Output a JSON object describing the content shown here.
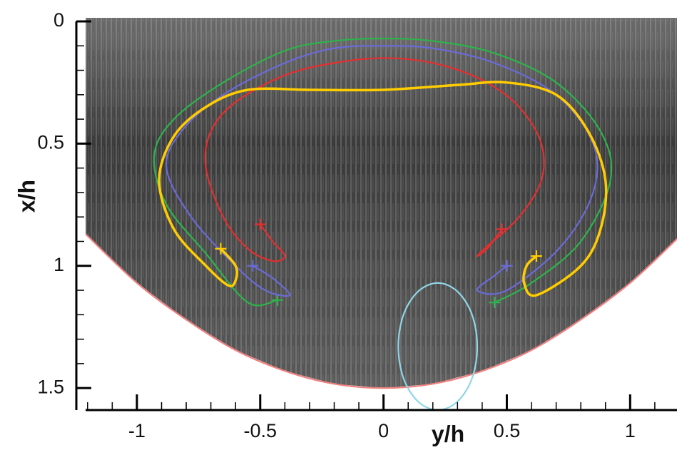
{
  "chart_data": {
    "type": "line",
    "xlabel": "y/h",
    "ylabel": "x/h",
    "xlim": [
      -1.208,
      1.19
    ],
    "ylim": [
      0,
      1.59
    ],
    "y_inverted": true,
    "xticks": [
      -1,
      -0.5,
      0,
      0.5,
      1
    ],
    "yticks": [
      0,
      0.5,
      1,
      1.5
    ],
    "xminorticks": [
      -1.2,
      -1.1,
      -0.9,
      -0.8,
      -0.7,
      -0.6,
      -0.4,
      -0.3,
      -0.2,
      -0.1,
      0.1,
      0.2,
      0.3,
      0.4,
      0.6,
      0.7,
      0.8,
      0.9,
      1.1
    ],
    "yminorticks": [
      0.1,
      0.2,
      0.3,
      0.4,
      0.6,
      0.7,
      0.8,
      0.9,
      1.1,
      1.2,
      1.3,
      1.4
    ],
    "series": [
      {
        "color": "#f08080",
        "role": "boundary",
        "x": [
          -1.208,
          -1,
          -0.8,
          -0.6,
          -0.4,
          -0.2,
          0,
          0.2,
          0.4,
          0.6,
          0.8,
          1,
          1.19
        ],
        "values": [
          0.87,
          1.07,
          1.22,
          1.345,
          1.43,
          1.483,
          1.5,
          1.483,
          1.43,
          1.345,
          1.22,
          1.07,
          0.89
        ]
      },
      {
        "color": "#2db34a",
        "marker": "+",
        "x": [
          -0.43,
          -0.55,
          -0.72,
          -0.88,
          -0.93,
          -0.85,
          -0.65,
          -0.4,
          -0.2,
          0,
          0.2,
          0.45,
          0.7,
          0.88,
          0.92,
          0.8,
          0.6,
          0.45
        ],
        "values": [
          1.14,
          1.15,
          0.95,
          0.75,
          0.55,
          0.4,
          0.25,
          0.12,
          0.08,
          0.07,
          0.08,
          0.13,
          0.25,
          0.45,
          0.65,
          0.9,
          1.07,
          1.15
        ]
      },
      {
        "color": "#6a6ad8",
        "marker": "+",
        "x": [
          -0.53,
          -0.45,
          -0.38,
          -0.48,
          -0.6,
          -0.78,
          -0.88,
          -0.82,
          -0.65,
          -0.4,
          -0.2,
          0,
          0.2,
          0.45,
          0.7,
          0.85,
          0.85,
          0.72,
          0.5,
          0.38,
          0.45,
          0.5
        ],
        "values": [
          1.0,
          1.05,
          1.12,
          1.1,
          1.0,
          0.8,
          0.6,
          0.45,
          0.3,
          0.17,
          0.11,
          0.1,
          0.11,
          0.17,
          0.3,
          0.5,
          0.7,
          0.92,
          1.1,
          1.1,
          1.04,
          1.0
        ]
      },
      {
        "color": "#e62e2e",
        "marker": "+",
        "x": [
          -0.5,
          -0.45,
          -0.4,
          -0.45,
          -0.55,
          -0.65,
          -0.72,
          -0.7,
          -0.6,
          -0.4,
          -0.2,
          0,
          0.2,
          0.4,
          0.55,
          0.64,
          0.64,
          0.55,
          0.42,
          0.38,
          0.42,
          0.48
        ],
        "values": [
          0.83,
          0.9,
          0.96,
          0.98,
          0.93,
          0.8,
          0.6,
          0.45,
          0.33,
          0.22,
          0.17,
          0.15,
          0.17,
          0.24,
          0.35,
          0.5,
          0.65,
          0.8,
          0.92,
          0.96,
          0.93,
          0.85
        ]
      },
      {
        "color": "#ffcc00",
        "marker": "+",
        "width": 3.5,
        "x": [
          -0.66,
          -0.6,
          -0.6,
          -0.63,
          -0.72,
          -0.85,
          -0.91,
          -0.85,
          -0.72,
          -0.55,
          -0.3,
          0,
          0.3,
          0.5,
          0.7,
          0.83,
          0.9,
          0.88,
          0.8,
          0.62,
          0.57,
          0.58,
          0.62
        ],
        "values": [
          0.93,
          1.0,
          1.06,
          1.08,
          1.0,
          0.85,
          0.65,
          0.47,
          0.35,
          0.28,
          0.28,
          0.28,
          0.26,
          0.25,
          0.3,
          0.45,
          0.65,
          0.85,
          1.0,
          1.12,
          1.07,
          1.0,
          0.96
        ]
      },
      {
        "color": "#8fd6e8",
        "closed": true,
        "x": [
          0.38,
          0.359,
          0.3,
          0.22,
          0.14,
          0.081,
          0.06,
          0.081,
          0.14,
          0.22,
          0.3,
          0.359
        ],
        "values": [
          1.33,
          1.2,
          1.105,
          1.07,
          1.105,
          1.2,
          1.33,
          1.46,
          1.555,
          1.59,
          1.555,
          1.46
        ]
      }
    ]
  }
}
